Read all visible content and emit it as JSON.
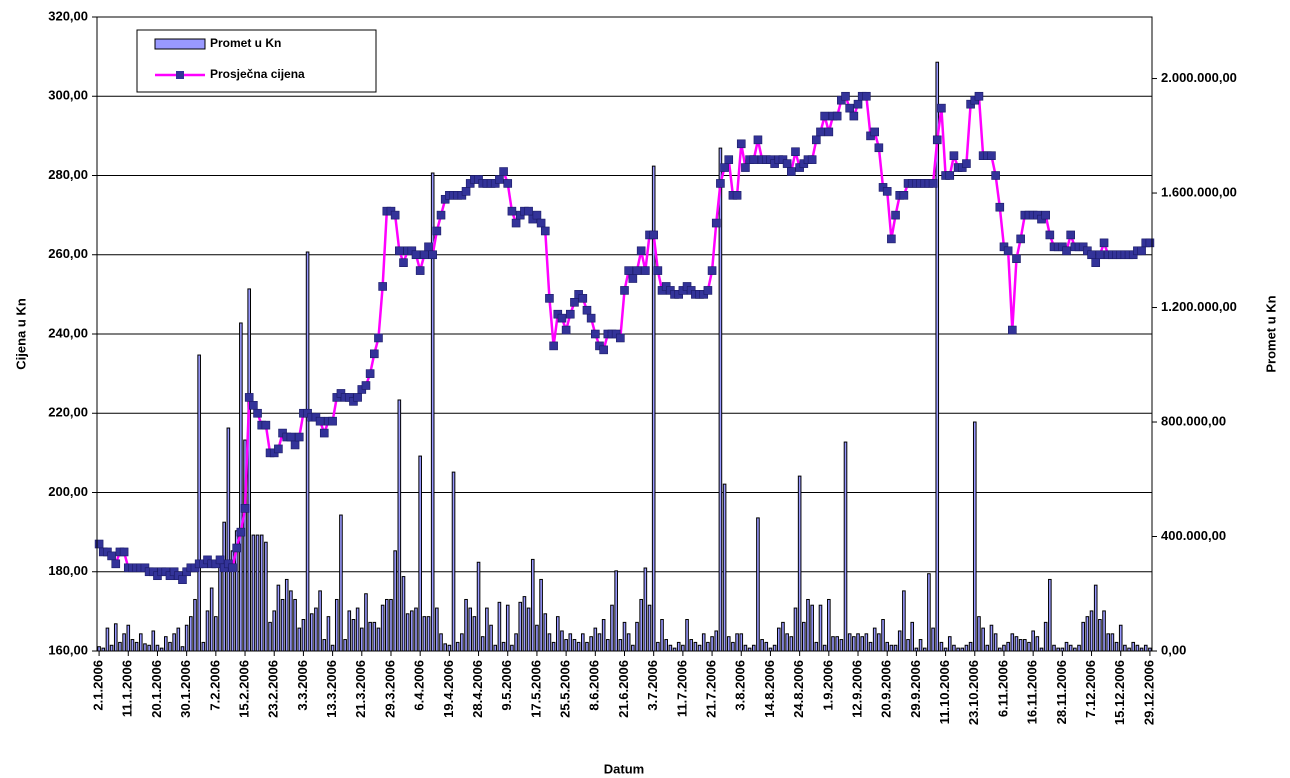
{
  "chart_data": {
    "type": "combo",
    "xlabel": "Datum",
    "ylabel": "Cijena u Kn",
    "y2label": "Promet u Kn",
    "legend": "upper left",
    "grid": true,
    "ylim": [
      160,
      320
    ],
    "yticks": [
      {
        "value": 160,
        "label": "160,00"
      },
      {
        "value": 180,
        "label": "180,00"
      },
      {
        "value": 200,
        "label": "200,00"
      },
      {
        "value": 220,
        "label": "220,00"
      },
      {
        "value": 240,
        "label": "240,00"
      },
      {
        "value": 260,
        "label": "260,00"
      },
      {
        "value": 280,
        "label": "280,00"
      },
      {
        "value": 300,
        "label": "300,00"
      },
      {
        "value": 320,
        "label": "320,00"
      }
    ],
    "y2lim": [
      0,
      2215000
    ],
    "y2ticks": [
      {
        "value": 0,
        "label": "0,00"
      },
      {
        "value": 400000,
        "label": "400.000,00"
      },
      {
        "value": 800000,
        "label": "800.000,00"
      },
      {
        "value": 1200000,
        "label": "1.200.000,00"
      },
      {
        "value": 1600000,
        "label": "1.600.000,00"
      },
      {
        "value": 2000000,
        "label": "2.000.000,00"
      }
    ],
    "categories": [
      "2.1.2006",
      null,
      null,
      null,
      null,
      null,
      null,
      "11.1.2006",
      null,
      null,
      null,
      null,
      null,
      null,
      "20.1.2006",
      null,
      null,
      null,
      null,
      null,
      null,
      "30.1.2006",
      null,
      null,
      null,
      null,
      null,
      null,
      "7.2.2006",
      null,
      null,
      null,
      null,
      null,
      null,
      "15.2.2006",
      null,
      null,
      null,
      null,
      null,
      null,
      "23.2.2006",
      null,
      null,
      null,
      null,
      null,
      null,
      "3.3.2006",
      null,
      null,
      null,
      null,
      null,
      null,
      "13.3.2006",
      null,
      null,
      null,
      null,
      null,
      null,
      "21.3.2006",
      null,
      null,
      null,
      null,
      null,
      null,
      "29.3.2006",
      null,
      null,
      null,
      null,
      null,
      null,
      "6.4.2006",
      null,
      null,
      null,
      null,
      null,
      null,
      "19.4.2006",
      null,
      null,
      null,
      null,
      null,
      null,
      "28.4.2006",
      null,
      null,
      null,
      null,
      null,
      null,
      "9.5.2006",
      null,
      null,
      null,
      null,
      null,
      null,
      "17.5.2006",
      null,
      null,
      null,
      null,
      null,
      null,
      "25.5.2006",
      null,
      null,
      null,
      null,
      null,
      null,
      "8.6.2006",
      null,
      null,
      null,
      null,
      null,
      null,
      "21.6.2006",
      null,
      null,
      null,
      null,
      null,
      null,
      "3.7.2006",
      null,
      null,
      null,
      null,
      null,
      null,
      "11.7.2006",
      null,
      null,
      null,
      null,
      null,
      null,
      "21.7.2006",
      null,
      null,
      null,
      null,
      null,
      null,
      "3.8.2006",
      null,
      null,
      null,
      null,
      null,
      null,
      "14.8.2006",
      null,
      null,
      null,
      null,
      null,
      null,
      "24.8.2006",
      null,
      null,
      null,
      null,
      null,
      null,
      "1.9.2006",
      null,
      null,
      null,
      null,
      null,
      null,
      "12.9.2006",
      null,
      null,
      null,
      null,
      null,
      null,
      "20.9.2006",
      null,
      null,
      null,
      null,
      null,
      null,
      "29.9.2006",
      null,
      null,
      null,
      null,
      null,
      null,
      "11.10.2006",
      null,
      null,
      null,
      null,
      null,
      null,
      "23.10.2006",
      null,
      null,
      null,
      null,
      null,
      null,
      "6.11.2006",
      null,
      null,
      null,
      null,
      null,
      null,
      "16.11.2006",
      null,
      null,
      null,
      null,
      null,
      null,
      "28.11.2006",
      null,
      null,
      null,
      null,
      null,
      null,
      "7.12.2006",
      null,
      null,
      null,
      null,
      null,
      null,
      "15.12.2006",
      null,
      null,
      null,
      null,
      null,
      null,
      "29.12.2006"
    ],
    "series": [
      {
        "name": "Promet u Kn",
        "type": "bar",
        "axis": "y2",
        "color": "#9999ff",
        "edgecolor": "#000000",
        "values": [
          15000,
          10000,
          80000,
          20000,
          95000,
          30000,
          60000,
          90000,
          40000,
          30000,
          60000,
          25000,
          20000,
          70000,
          20000,
          10000,
          50000,
          30000,
          60000,
          80000,
          15000,
          90000,
          120000,
          180000,
          1034000,
          30000,
          140000,
          220000,
          120000,
          310000,
          450000,
          779000,
          350000,
          420000,
          1146000,
          737000,
          1265000,
          405000,
          405000,
          405000,
          380000,
          100000,
          140000,
          230000,
          180000,
          250000,
          210000,
          180000,
          80000,
          110000,
          1394000,
          130000,
          150000,
          210000,
          40000,
          120000,
          20000,
          180000,
          475000,
          40000,
          140000,
          110000,
          150000,
          80000,
          200000,
          100000,
          100000,
          80000,
          160000,
          180000,
          180000,
          350000,
          877000,
          260000,
          130000,
          140000,
          150000,
          681000,
          120000,
          120000,
          1670000,
          150000,
          60000,
          25000,
          20000,
          625000,
          30000,
          60000,
          180000,
          150000,
          120000,
          310000,
          50000,
          150000,
          90000,
          20000,
          170000,
          30000,
          160000,
          20000,
          60000,
          170000,
          190000,
          150000,
          320000,
          90000,
          250000,
          130000,
          60000,
          30000,
          120000,
          70000,
          40000,
          60000,
          40000,
          30000,
          60000,
          30000,
          50000,
          80000,
          60000,
          110000,
          40000,
          160000,
          280000,
          40000,
          100000,
          60000,
          20000,
          100000,
          180000,
          290000,
          160000,
          1694000,
          30000,
          110000,
          40000,
          20000,
          10000,
          30000,
          20000,
          110000,
          40000,
          30000,
          20000,
          60000,
          30000,
          50000,
          70000,
          1757000,
          583000,
          50000,
          30000,
          60000,
          60000,
          20000,
          10000,
          20000,
          465000,
          40000,
          30000,
          10000,
          20000,
          80000,
          100000,
          60000,
          50000,
          150000,
          611000,
          100000,
          180000,
          160000,
          30000,
          160000,
          20000,
          180000,
          50000,
          50000,
          40000,
          730000,
          60000,
          50000,
          60000,
          50000,
          60000,
          30000,
          80000,
          60000,
          110000,
          30000,
          20000,
          20000,
          70000,
          210000,
          40000,
          100000,
          10000,
          40000,
          10000,
          270000,
          80000,
          2057000,
          30000,
          10000,
          50000,
          20000,
          10000,
          10000,
          20000,
          30000,
          800000,
          120000,
          80000,
          20000,
          90000,
          60000,
          10000,
          20000,
          30000,
          60000,
          50000,
          40000,
          40000,
          30000,
          70000,
          50000,
          10000,
          100000,
          250000,
          20000,
          10000,
          10000,
          30000,
          20000,
          10000,
          20000,
          100000,
          120000,
          140000,
          230000,
          110000,
          140000,
          60000,
          60000,
          30000,
          90000,
          20000,
          10000,
          30000,
          20000,
          10000,
          20000,
          10000
        ]
      },
      {
        "name": "Prosječna cijena",
        "type": "line",
        "axis": "y",
        "color": "#ff00ff",
        "marker_color": "#333399",
        "values": [
          187,
          185,
          185,
          184,
          182,
          185,
          185,
          181,
          181,
          181,
          181,
          181,
          180,
          180,
          179,
          180,
          180,
          179,
          180,
          179,
          178,
          180,
          181,
          181,
          182,
          182,
          183,
          182,
          182,
          183,
          181,
          182,
          181,
          186,
          190,
          196,
          224,
          222,
          220,
          217,
          217,
          210,
          210,
          211,
          215,
          214,
          214,
          212,
          214,
          220,
          220,
          219,
          219,
          218,
          215,
          218,
          218,
          224,
          225,
          224,
          224,
          223,
          224,
          226,
          227,
          230,
          235,
          239,
          252,
          271,
          271,
          270,
          261,
          258,
          261,
          261,
          260,
          256,
          260,
          262,
          260,
          266,
          270,
          274,
          275,
          275,
          275,
          275,
          276,
          278,
          279,
          279,
          278,
          278,
          278,
          278,
          279,
          281,
          278,
          271,
          268,
          270,
          271,
          271,
          269,
          270,
          268,
          266,
          249,
          237,
          245,
          244,
          241,
          245,
          248,
          250,
          249,
          246,
          244,
          240,
          237,
          236,
          240,
          240,
          240,
          239,
          251,
          256,
          254,
          256,
          261,
          256,
          265,
          265,
          256,
          251,
          252,
          251,
          250,
          250,
          251,
          252,
          251,
          250,
          250,
          250,
          251,
          256,
          268,
          278,
          282,
          284,
          275,
          275,
          288,
          282,
          284,
          284,
          289,
          284,
          284,
          284,
          283,
          284,
          284,
          283,
          281,
          286,
          282,
          283,
          284,
          284,
          289,
          291,
          295,
          291,
          295,
          295,
          299,
          300,
          297,
          295,
          298,
          300,
          300,
          290,
          291,
          287,
          277,
          276,
          264,
          270,
          275,
          275,
          278,
          278,
          278,
          278,
          278,
          278,
          278,
          289,
          297,
          280,
          280,
          285,
          282,
          282,
          283,
          298,
          299,
          300,
          285,
          285,
          285,
          280,
          272,
          262,
          261,
          241,
          259,
          264,
          270,
          270,
          270,
          270,
          269,
          270,
          265,
          262,
          262,
          262,
          261,
          265,
          262,
          262,
          262,
          261,
          260,
          258,
          260,
          263,
          260,
          260,
          260,
          260,
          260,
          260,
          260,
          261,
          261,
          263,
          263
        ]
      }
    ]
  }
}
